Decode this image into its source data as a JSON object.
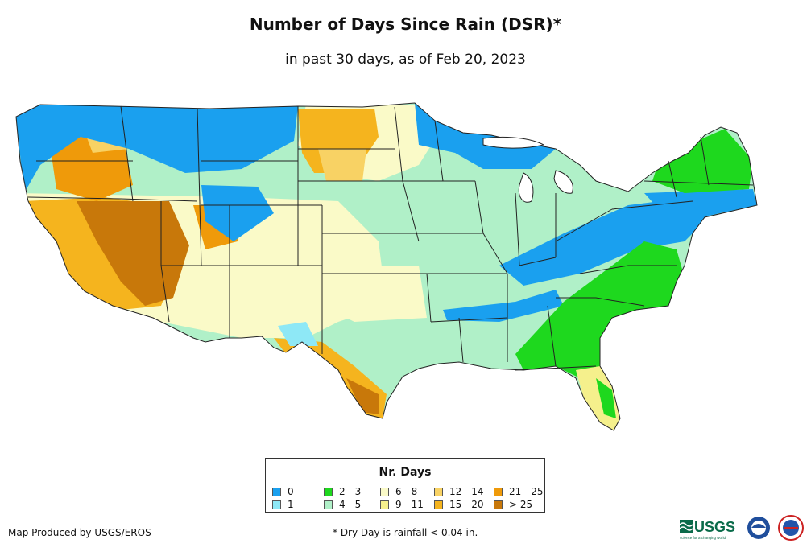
{
  "map": {
    "title": "Number of Days Since Rain (DSR)*",
    "subtitle": "in past 30 days, as of Feb 20, 2023"
  },
  "legend": {
    "title": "Nr. Days",
    "items": [
      {
        "label": "0",
        "color": "#1aa0ef"
      },
      {
        "label": "1",
        "color": "#8ee8f6"
      },
      {
        "label": "2 - 3",
        "color": "#1ed81e"
      },
      {
        "label": "4 - 5",
        "color": "#b0f0c8"
      },
      {
        "label": "6 - 8",
        "color": "#fafac8"
      },
      {
        "label": "9 - 11",
        "color": "#f5f08c"
      },
      {
        "label": "12 - 14",
        "color": "#f8d264"
      },
      {
        "label": "15 - 20",
        "color": "#f5b41e"
      },
      {
        "label": "21 - 25",
        "color": "#ef9a0a"
      },
      {
        "label": "> 25",
        "color": "#c8780a"
      }
    ]
  },
  "footer": {
    "credit": "Map Produced by USGS/EROS",
    "note": "* Dry Day is rainfall < 0.04 in."
  },
  "logos": {
    "usgs_text": "USGS",
    "usgs_tagline": "science for a changing world"
  }
}
